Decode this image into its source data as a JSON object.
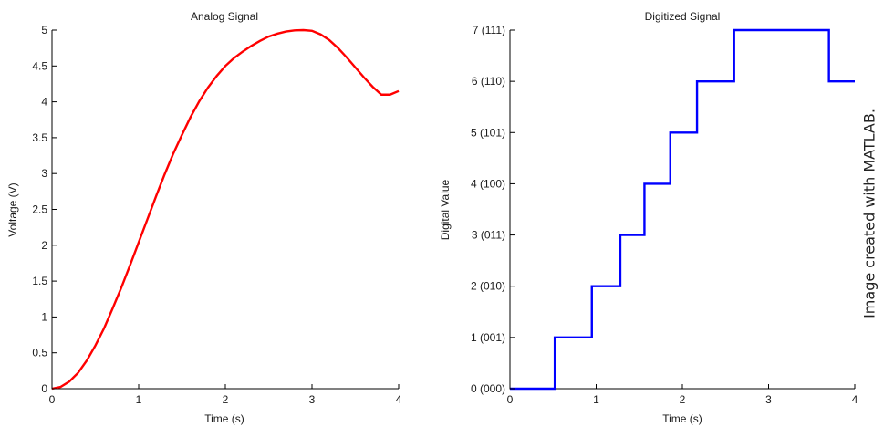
{
  "credit": "Image created with MATLAB.",
  "colors": {
    "analog": "#ff0000",
    "digital": "#0000ff",
    "axis": "#000000"
  },
  "chart_data": [
    {
      "type": "line",
      "title": "Analog Signal",
      "xlabel": "Time (s)",
      "ylabel": "Voltage (V)",
      "xlim": [
        0,
        4
      ],
      "ylim": [
        0,
        5
      ],
      "xticks": [
        0,
        1,
        2,
        3,
        4
      ],
      "xtick_labels": [
        "0",
        "1",
        "2",
        "3",
        "4"
      ],
      "yticks": [
        0,
        0.5,
        1,
        1.5,
        2,
        2.5,
        3,
        3.5,
        4,
        4.5,
        5
      ],
      "ytick_labels": [
        "0",
        "0.5",
        "1",
        "1.5",
        "2",
        "2.5",
        "3",
        "3.5",
        "4",
        "4.5",
        "5"
      ],
      "grid": false,
      "series": [
        {
          "color": "#ff0000",
          "x": [
            0,
            0.1,
            0.2,
            0.3,
            0.4,
            0.5,
            0.6,
            0.7,
            0.8,
            0.9,
            1.0,
            1.1,
            1.2,
            1.3,
            1.4,
            1.5,
            1.6,
            1.7,
            1.8,
            1.9,
            2.0,
            2.1,
            2.2,
            2.3,
            2.4,
            2.5,
            2.6,
            2.7,
            2.8,
            2.9,
            3.0,
            3.1,
            3.2,
            3.3,
            3.4,
            3.5,
            3.6,
            3.7,
            3.8,
            3.9,
            4.0
          ],
          "y": [
            0,
            0.025,
            0.1,
            0.22,
            0.39,
            0.6,
            0.84,
            1.12,
            1.41,
            1.72,
            2.04,
            2.36,
            2.68,
            2.99,
            3.28,
            3.54,
            3.79,
            4.01,
            4.2,
            4.36,
            4.5,
            4.61,
            4.7,
            4.78,
            4.85,
            4.91,
            4.95,
            4.98,
            4.996,
            5.0,
            4.99,
            4.94,
            4.86,
            4.75,
            4.62,
            4.48,
            4.34,
            4.21,
            4.1,
            4.1,
            4.15
          ]
        }
      ]
    },
    {
      "type": "line",
      "title": "Digitized Signal",
      "xlabel": "Time (s)",
      "ylabel": "Digital Value",
      "xlim": [
        0,
        4
      ],
      "ylim": [
        0,
        7
      ],
      "xticks": [
        0,
        1,
        2,
        3,
        4
      ],
      "xtick_labels": [
        "0",
        "1",
        "2",
        "3",
        "4"
      ],
      "yticks": [
        0,
        1,
        2,
        3,
        4,
        5,
        6,
        7
      ],
      "ytick_labels": [
        "0 (000)",
        "1 (001)",
        "2 (010)",
        "3 (011)",
        "4 (100)",
        "5 (101)",
        "6 (110)",
        "7 (111)"
      ],
      "grid": false,
      "series": [
        {
          "color": "#0000ff",
          "step": true,
          "x": [
            0,
            0.52,
            0.52,
            0.95,
            0.95,
            1.28,
            1.28,
            1.56,
            1.56,
            1.86,
            1.86,
            2.17,
            2.17,
            2.6,
            2.6,
            3.7,
            3.7,
            4.0
          ],
          "y": [
            0,
            0,
            1,
            1,
            2,
            2,
            3,
            3,
            4,
            4,
            5,
            5,
            6,
            6,
            7,
            7,
            6,
            6
          ]
        }
      ]
    }
  ]
}
